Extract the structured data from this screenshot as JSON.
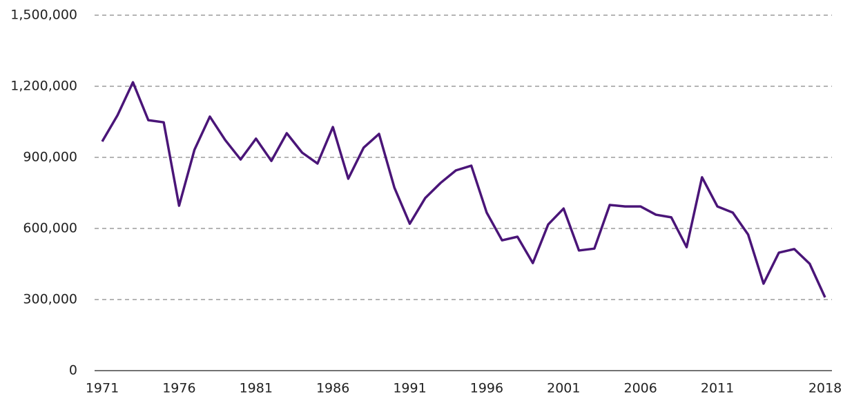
{
  "chart_data": {
    "type": "line",
    "x": [
      1971,
      1972,
      1973,
      1974,
      1975,
      1976,
      1977,
      1978,
      1979,
      1980,
      1981,
      1982,
      1983,
      1984,
      1985,
      1986,
      1987,
      1988,
      1989,
      1990,
      1991,
      1992,
      1993,
      1994,
      1995,
      1996,
      1997,
      1998,
      1999,
      2000,
      2001,
      2002,
      2003,
      2004,
      2005,
      2006,
      2007,
      2008,
      2009,
      2010,
      2011,
      2012,
      2013,
      2014,
      2015,
      2016,
      2017,
      2018
    ],
    "series": [
      {
        "color": "#4a1578",
        "values": [
          967000,
          1078000,
          1217000,
          1057000,
          1048000,
          696000,
          932000,
          1072000,
          973000,
          891000,
          979000,
          885000,
          1002000,
          920000,
          874000,
          1028000,
          810000,
          941000,
          999000,
          772000,
          620000,
          728000,
          792000,
          845000,
          865000,
          667000,
          550000,
          565000,
          454000,
          617000,
          684000,
          507000,
          515000,
          699000,
          693000,
          693000,
          658000,
          647000,
          521000,
          816000,
          693000,
          667000,
          574000,
          367000,
          498000,
          513000,
          451000,
          309000
        ]
      }
    ],
    "xlim": [
      1971,
      2018
    ],
    "xticks": [
      1971,
      1976,
      1981,
      1986,
      1991,
      1996,
      2001,
      2006,
      2011,
      2018
    ],
    "ylim": [
      0,
      1500000
    ],
    "yticks": [
      0,
      {
        "value": 300000,
        "label": "300,000"
      },
      {
        "value": 600000,
        "label": "600,000"
      },
      {
        "value": 900000,
        "label": "900,000"
      },
      {
        "value": 1200000,
        "label": "1,200,000"
      },
      {
        "value": 1500000,
        "label": "1,500,000"
      }
    ],
    "grid": true
  }
}
